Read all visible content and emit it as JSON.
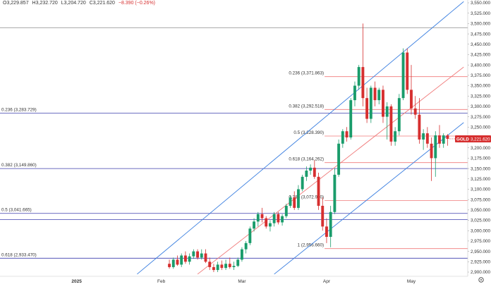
{
  "ohlc": {
    "open": "O3,229.857",
    "high": "H3,232.720",
    "low": "L3,204.720",
    "close": "C3,221.620",
    "change": "−8.390 (−0.26%)"
  },
  "symbol_badge": {
    "label": "GOLD",
    "price": "3,221.620"
  },
  "colors": {
    "bull": "#1a9c6b",
    "bear": "#d62f2f",
    "fib_long": "#3c3fae",
    "fib_short": "#f07a7a",
    "channel_upper": "#3b7fe0",
    "channel_mid": "#f07a7a",
    "badge": "#d62f2f"
  },
  "chart_data": {
    "type": "candlestick",
    "y_axis": {
      "range": [
        2900,
        3550
      ],
      "tick_step": 25,
      "ticks": [
        "3,550.000",
        "3,525.000",
        "3,500.000",
        "3,475.000",
        "3,450.000",
        "3,425.000",
        "3,400.000",
        "3,375.000",
        "3,350.000",
        "3,325.000",
        "3,300.000",
        "3,275.000",
        "3,250.000",
        "3,225.000",
        "3,200.000",
        "3,175.000",
        "3,150.000",
        "3,125.000",
        "3,100.000",
        "3,075.000",
        "3,050.000",
        "3,025.000",
        "3,000.000",
        "2,975.000",
        "2,950.000",
        "2,925.000",
        "2,900.000"
      ]
    },
    "x_axis": {
      "labels": [
        {
          "text": "2025",
          "index": -17
        },
        {
          "text": "Feb",
          "index": 4
        },
        {
          "text": "Mar",
          "index": 24
        },
        {
          "text": "Apr",
          "index": 45
        },
        {
          "text": "May",
          "index": 66
        }
      ],
      "visible_index_range": [
        -36,
        80
      ]
    },
    "fib_long": [
      {
        "label": "0.236 (3,283.729)",
        "value": 3283.729
      },
      {
        "label": "0.382 (3,149.860)",
        "value": 3149.86
      },
      {
        "label": "0.5 (3,041.665)",
        "value": 3041.665
      },
      {
        "label": "0.618 (2,933.470)",
        "value": 2933.47
      }
    ],
    "fib_long_extra_lines": [
      3490,
      3027
    ],
    "fib_short": [
      {
        "label": "0.236 (3,371.863)",
        "value": 3371.863
      },
      {
        "label": "0.382 (3,292.518)",
        "value": 3292.518
      },
      {
        "label": "0.5 (3,228.390)",
        "value": 3228.39
      },
      {
        "label": "0.618 (3,164.262)",
        "value": 3164.262
      },
      {
        "label": "0.786 (3,072.960)",
        "value": 3072.96
      },
      {
        "label": "1 (2,956.660)",
        "value": 2956.66
      }
    ],
    "channel": {
      "upper": [
        [
          -2,
          2895
        ],
        [
          79,
          3553
        ]
      ],
      "mid": [
        [
          13,
          2895
        ],
        [
          79,
          3395
        ]
      ],
      "lower": [
        [
          32,
          2895
        ],
        [
          79,
          3261
        ]
      ]
    },
    "last_price": 3221.62,
    "candles": [
      [
        6,
        2920,
        2930,
        2908,
        2912
      ],
      [
        7,
        2912,
        2935,
        2908,
        2930
      ],
      [
        8,
        2930,
        2940,
        2915,
        2918
      ],
      [
        9,
        2918,
        2945,
        2912,
        2940
      ],
      [
        10,
        2940,
        2950,
        2920,
        2925
      ],
      [
        11,
        2925,
        2945,
        2918,
        2938
      ],
      [
        12,
        2938,
        2955,
        2932,
        2950
      ],
      [
        13,
        2950,
        2955,
        2930,
        2935
      ],
      [
        14,
        2935,
        2955,
        2930,
        2945
      ],
      [
        15,
        2945,
        2955,
        2922,
        2925
      ],
      [
        16,
        2925,
        2935,
        2905,
        2912
      ],
      [
        17,
        2912,
        2920,
        2900,
        2905
      ],
      [
        18,
        2905,
        2925,
        2900,
        2918
      ],
      [
        19,
        2918,
        2928,
        2905,
        2910
      ],
      [
        20,
        2910,
        2930,
        2905,
        2920
      ],
      [
        21,
        2920,
        2935,
        2908,
        2912
      ],
      [
        22,
        2912,
        2925,
        2905,
        2915
      ],
      [
        23,
        2915,
        2935,
        2912,
        2930
      ],
      [
        24,
        2930,
        2960,
        2925,
        2955
      ],
      [
        25,
        2955,
        2975,
        2945,
        2970
      ],
      [
        26,
        2970,
        3010,
        2965,
        3005
      ],
      [
        27,
        3005,
        3030,
        2998,
        3022
      ],
      [
        28,
        3022,
        3045,
        3010,
        3040
      ],
      [
        29,
        3040,
        3055,
        3020,
        3030
      ],
      [
        30,
        3030,
        3035,
        3005,
        3010
      ],
      [
        31,
        3010,
        3025,
        2998,
        3018
      ],
      [
        32,
        3018,
        3045,
        3010,
        3040
      ],
      [
        33,
        3040,
        3045,
        3015,
        3020
      ],
      [
        34,
        3020,
        3040,
        3012,
        3035
      ],
      [
        35,
        3035,
        3065,
        3030,
        3060
      ],
      [
        36,
        3060,
        3085,
        3055,
        3080
      ],
      [
        37,
        3080,
        3095,
        3050,
        3055
      ],
      [
        38,
        3055,
        3110,
        3050,
        3100
      ],
      [
        39,
        3100,
        3135,
        3095,
        3130
      ],
      [
        40,
        3130,
        3155,
        3120,
        3145
      ],
      [
        41,
        3145,
        3160,
        3135,
        3152
      ],
      [
        42,
        3152,
        3170,
        3125,
        3130
      ],
      [
        43,
        3130,
        3140,
        3050,
        3060
      ],
      [
        44,
        3060,
        3080,
        3000,
        3010
      ],
      [
        45,
        3010,
        3030,
        2970,
        2985
      ],
      [
        46,
        2985,
        3060,
        2960,
        3045
      ],
      [
        47,
        3045,
        3150,
        3040,
        3135
      ],
      [
        48,
        3135,
        3220,
        3130,
        3210
      ],
      [
        49,
        3210,
        3245,
        3200,
        3240
      ],
      [
        50,
        3240,
        3250,
        3215,
        3225
      ],
      [
        51,
        3225,
        3320,
        3220,
        3315
      ],
      [
        52,
        3315,
        3360,
        3300,
        3350
      ],
      [
        53,
        3350,
        3400,
        3340,
        3395
      ],
      [
        54,
        3395,
        3500,
        3300,
        3320
      ],
      [
        55,
        3320,
        3345,
        3260,
        3270
      ],
      [
        56,
        3270,
        3350,
        3260,
        3345
      ],
      [
        57,
        3345,
        3360,
        3300,
        3315
      ],
      [
        58,
        3315,
        3345,
        3305,
        3340
      ],
      [
        59,
        3340,
        3350,
        3260,
        3275
      ],
      [
        60,
        3275,
        3310,
        3220,
        3300
      ],
      [
        61,
        3300,
        3305,
        3205,
        3215
      ],
      [
        62,
        3215,
        3250,
        3205,
        3240
      ],
      [
        63,
        3240,
        3330,
        3230,
        3320
      ],
      [
        64,
        3320,
        3440,
        3315,
        3430
      ],
      [
        65,
        3430,
        3440,
        3330,
        3340
      ],
      [
        66,
        3340,
        3400,
        3280,
        3295
      ],
      [
        67,
        3295,
        3325,
        3270,
        3280
      ],
      [
        68,
        3280,
        3320,
        3210,
        3220
      ],
      [
        69,
        3220,
        3245,
        3195,
        3235
      ],
      [
        70,
        3235,
        3250,
        3200,
        3210
      ],
      [
        71,
        3210,
        3225,
        3120,
        3175
      ],
      [
        72,
        3175,
        3240,
        3130,
        3230
      ],
      [
        73,
        3230,
        3255,
        3200,
        3210
      ],
      [
        74,
        3210,
        3235,
        3200,
        3230
      ],
      [
        75,
        3230,
        3233,
        3205,
        3221.62
      ]
    ]
  }
}
